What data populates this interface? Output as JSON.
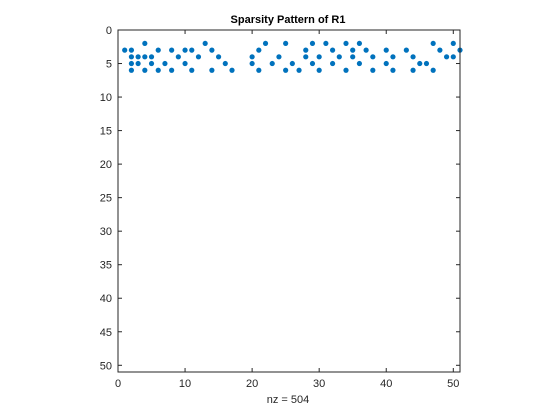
{
  "chart_data": {
    "type": "scatter",
    "title": "Sparsity Pattern of R1",
    "xlabel": "nz = 504",
    "ylabel": "",
    "xlim": [
      0,
      51
    ],
    "ylim": [
      0,
      51
    ],
    "y_reversed": true,
    "xticks": [
      0,
      10,
      20,
      30,
      40,
      50
    ],
    "yticks": [
      0,
      5,
      10,
      15,
      20,
      25,
      30,
      35,
      40,
      45,
      50
    ],
    "grid": false,
    "marker_color": "#0072BD",
    "series": [
      {
        "points": [
          [
            4,
            2
          ],
          [
            13,
            2
          ],
          [
            22,
            2
          ],
          [
            25,
            2
          ],
          [
            29,
            2
          ],
          [
            31,
            2
          ],
          [
            34,
            2
          ],
          [
            36,
            2
          ],
          [
            47,
            2
          ],
          [
            50,
            2
          ],
          [
            1,
            3
          ],
          [
            2,
            3
          ],
          [
            6,
            3
          ],
          [
            8,
            3
          ],
          [
            10,
            3
          ],
          [
            11,
            3
          ],
          [
            14,
            3
          ],
          [
            21,
            3
          ],
          [
            28,
            3
          ],
          [
            32,
            3
          ],
          [
            35,
            3
          ],
          [
            37,
            3
          ],
          [
            40,
            3
          ],
          [
            43,
            3
          ],
          [
            48,
            3
          ],
          [
            51,
            3
          ],
          [
            2,
            4
          ],
          [
            3,
            4
          ],
          [
            4,
            4
          ],
          [
            5,
            4
          ],
          [
            9,
            4
          ],
          [
            12,
            4
          ],
          [
            15,
            4
          ],
          [
            20,
            4
          ],
          [
            24,
            4
          ],
          [
            28,
            4
          ],
          [
            30,
            4
          ],
          [
            33,
            4
          ],
          [
            35,
            4
          ],
          [
            38,
            4
          ],
          [
            41,
            4
          ],
          [
            44,
            4
          ],
          [
            49,
            4
          ],
          [
            50,
            4
          ],
          [
            2,
            5
          ],
          [
            3,
            5
          ],
          [
            5,
            5
          ],
          [
            7,
            5
          ],
          [
            10,
            5
          ],
          [
            16,
            5
          ],
          [
            20,
            5
          ],
          [
            23,
            5
          ],
          [
            26,
            5
          ],
          [
            29,
            5
          ],
          [
            32,
            5
          ],
          [
            36,
            5
          ],
          [
            40,
            5
          ],
          [
            45,
            5
          ],
          [
            46,
            5
          ],
          [
            2,
            6
          ],
          [
            4,
            6
          ],
          [
            6,
            6
          ],
          [
            8,
            6
          ],
          [
            11,
            6
          ],
          [
            14,
            6
          ],
          [
            17,
            6
          ],
          [
            21,
            6
          ],
          [
            25,
            6
          ],
          [
            27,
            6
          ],
          [
            30,
            6
          ],
          [
            34,
            6
          ],
          [
            38,
            6
          ],
          [
            41,
            6
          ],
          [
            44,
            6
          ],
          [
            47,
            6
          ]
        ]
      }
    ]
  }
}
